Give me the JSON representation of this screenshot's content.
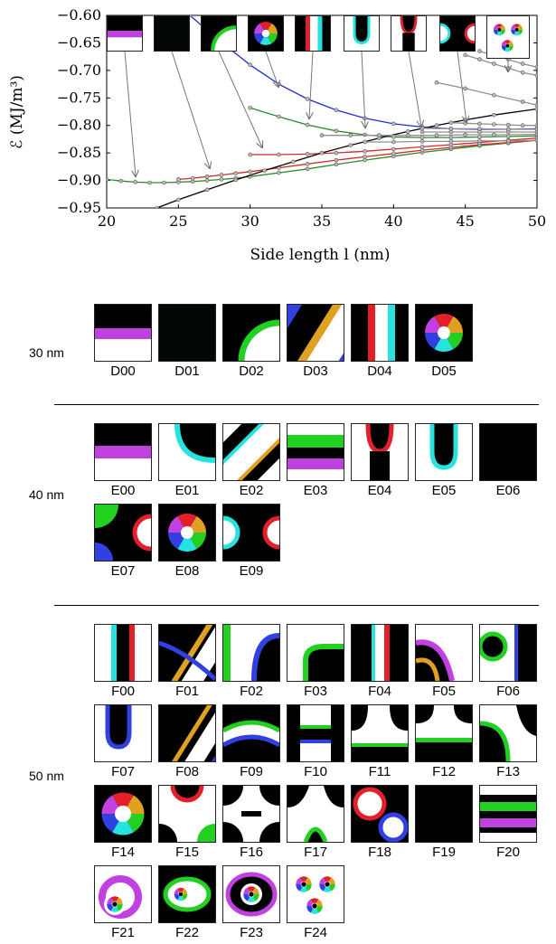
{
  "chart_data": {
    "type": "line",
    "xlabel": "Side length l (nm)",
    "ylabel": "ℰ (MJ/m³)",
    "xlim": [
      20,
      50
    ],
    "ylim": [
      -0.95,
      -0.6
    ],
    "xticks": [
      "20",
      "25",
      "30",
      "35",
      "40",
      "45",
      "50"
    ],
    "yticks": [
      "−0.60",
      "−0.65",
      "−0.70",
      "−0.75",
      "−0.80",
      "−0.85",
      "−0.90",
      "−0.95"
    ],
    "grid": false,
    "series": [
      {
        "color": "#1f2fd6",
        "x": [
          25.8,
          28,
          30,
          32,
          34,
          36,
          38,
          40,
          42,
          44,
          46,
          48,
          50
        ],
        "y": [
          -0.6,
          -0.649,
          -0.69,
          -0.725,
          -0.752,
          -0.772,
          -0.787,
          -0.797,
          -0.803,
          -0.806,
          -0.807,
          -0.807,
          -0.806
        ]
      },
      {
        "color": "#2a8a2a",
        "x": [
          30,
          32,
          34,
          36,
          38,
          40,
          42,
          44,
          46,
          48,
          50
        ],
        "y": [
          -0.768,
          -0.784,
          -0.799,
          -0.81,
          -0.817,
          -0.821,
          -0.822,
          -0.822,
          -0.821,
          -0.82,
          -0.819
        ]
      },
      {
        "color": "#2a8a2a",
        "x": [
          20,
          21,
          22,
          23,
          24,
          25,
          26,
          27,
          28,
          29,
          30,
          32,
          34,
          36,
          38,
          40,
          42,
          44,
          46,
          48,
          50
        ],
        "y": [
          -0.898,
          -0.901,
          -0.903,
          -0.904,
          -0.904,
          -0.903,
          -0.902,
          -0.9,
          -0.898,
          -0.896,
          -0.893,
          -0.886,
          -0.879,
          -0.871,
          -0.863,
          -0.856,
          -0.849,
          -0.843,
          -0.837,
          -0.832,
          -0.827
        ]
      },
      {
        "color": "#d62828",
        "x": [
          25,
          26,
          27,
          28,
          29,
          30,
          32,
          34,
          36,
          38,
          40,
          42,
          44,
          46,
          48,
          50
        ],
        "y": [
          -0.898,
          -0.896,
          -0.893,
          -0.89,
          -0.887,
          -0.884,
          -0.877,
          -0.87,
          -0.863,
          -0.857,
          -0.851,
          -0.845,
          -0.84,
          -0.835,
          -0.831,
          -0.827
        ]
      },
      {
        "color": "#d62828",
        "x": [
          30,
          32,
          34,
          36,
          38,
          40,
          42,
          44,
          46,
          48,
          50
        ],
        "y": [
          -0.853,
          -0.853,
          -0.852,
          -0.85,
          -0.847,
          -0.843,
          -0.839,
          -0.835,
          -0.831,
          -0.827,
          -0.823
        ]
      },
      {
        "color": "#000000",
        "x": [
          23.5,
          25,
          27,
          29,
          31,
          33,
          35,
          37,
          39,
          41,
          43,
          45,
          47,
          50
        ],
        "y": [
          -0.95,
          -0.935,
          -0.917,
          -0.899,
          -0.882,
          -0.866,
          -0.85,
          -0.836,
          -0.823,
          -0.811,
          -0.8,
          -0.79,
          -0.781,
          -0.77
        ]
      },
      {
        "color": "#909090",
        "x": [
          35,
          37,
          39,
          41,
          43,
          45,
          47,
          50
        ],
        "y": [
          -0.818,
          -0.818,
          -0.818,
          -0.818,
          -0.818,
          -0.817,
          -0.817,
          -0.816
        ]
      },
      {
        "color": "#909090",
        "x": [
          38,
          40,
          42,
          44,
          46,
          48,
          50
        ],
        "y": [
          -0.83,
          -0.83,
          -0.829,
          -0.829,
          -0.828,
          -0.828,
          -0.827
        ]
      },
      {
        "color": "#909090",
        "x": [
          43,
          45,
          47,
          49,
          50
        ],
        "y": [
          -0.722,
          -0.733,
          -0.745,
          -0.757,
          -0.763
        ]
      },
      {
        "color": "#909090",
        "x": [
          45,
          46,
          47,
          48,
          49,
          50
        ],
        "y": [
          -0.672,
          -0.68,
          -0.688,
          -0.696,
          -0.704,
          -0.709
        ]
      },
      {
        "color": "#909090",
        "x": [
          46,
          47,
          48,
          49,
          50
        ],
        "y": [
          -0.665,
          -0.673,
          -0.68,
          -0.688,
          -0.694
        ]
      },
      {
        "color": "#909090",
        "x": [
          44,
          45,
          46,
          47,
          48,
          49,
          50
        ],
        "y": [
          -0.795,
          -0.796,
          -0.797,
          -0.798,
          -0.799,
          -0.8,
          -0.8
        ]
      },
      {
        "color": "#909090",
        "x": [
          42,
          44,
          46,
          48,
          50
        ],
        "y": [
          -0.812,
          -0.812,
          -0.812,
          -0.812,
          -0.812
        ]
      },
      {
        "color": "#909090",
        "x": [
          42,
          44,
          46,
          48,
          50
        ],
        "y": [
          -0.805,
          -0.806,
          -0.806,
          -0.807,
          -0.807
        ]
      }
    ]
  },
  "inset_thumbnails": [
    "D00",
    "D01",
    "D02",
    "D05",
    "D04",
    "E05",
    "E04",
    "E09",
    "F24"
  ],
  "galleries": [
    {
      "row_label": "30 nm",
      "tiles": [
        "D00",
        "D01",
        "D02",
        "D03",
        "D04",
        "D05"
      ]
    },
    {
      "row_label": "40 nm",
      "tiles": [
        "E00",
        "E01",
        "E02",
        "E03",
        "E04",
        "E05",
        "E06",
        "E07",
        "E08",
        "E09"
      ]
    },
    {
      "row_label": "50 nm",
      "tiles": [
        "F00",
        "F01",
        "F02",
        "F03",
        "F04",
        "F05",
        "F06",
        "F07",
        "F08",
        "F09",
        "F10",
        "F11",
        "F12",
        "F13",
        "F14",
        "F15",
        "F16",
        "F17",
        "F18",
        "F19",
        "F20",
        "F21",
        "F22",
        "F23",
        "F24"
      ]
    }
  ]
}
